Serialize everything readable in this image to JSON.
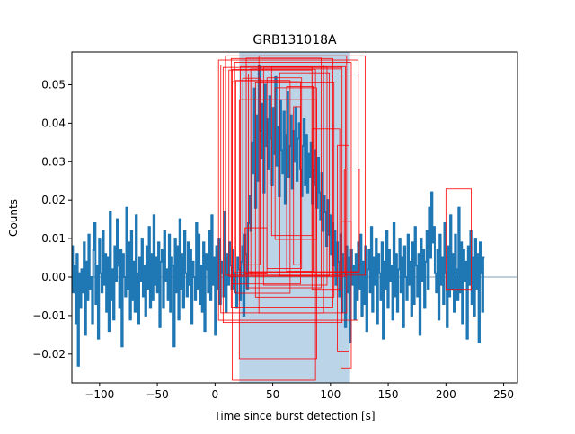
{
  "chart_data": {
    "type": "line",
    "title": "GRB131018A",
    "xlabel": "Time since burst detection [s]",
    "ylabel": "Counts",
    "xlim": [
      -124,
      262
    ],
    "ylim": [
      -0.0275,
      0.0585
    ],
    "grid": false,
    "xticks": [
      -100,
      -50,
      0,
      50,
      100,
      150,
      200,
      250
    ],
    "xtick_labels": [
      "−100",
      "−50",
      "0",
      "50",
      "100",
      "150",
      "200",
      "250"
    ],
    "yticks": [
      -0.02,
      -0.01,
      0.0,
      0.01,
      0.02,
      0.03,
      0.04,
      0.05
    ],
    "ytick_labels": [
      "−0.02",
      "−0.01",
      "0.00",
      "0.01",
      "0.02",
      "0.03",
      "0.04",
      "0.05"
    ],
    "shaded_interval": {
      "x": [
        21,
        117
      ],
      "color": "#bcd4e8"
    },
    "baseline": {
      "y": 0.0,
      "color": "#7f9fb5"
    },
    "series": [
      {
        "color": "#1f77b4",
        "x_start": -124,
        "x_step": 1.024,
        "values": [
          0.008,
          -0.004,
          0.003,
          -0.012,
          0.006,
          -0.023,
          0.001,
          -0.008,
          0.002,
          -0.004,
          0.009,
          -0.015,
          0.004,
          -0.006,
          0.011,
          -0.003,
          0.0,
          -0.012,
          0.007,
          0.014,
          -0.007,
          0.003,
          -0.016,
          0.01,
          0.001,
          -0.004,
          0.012,
          -0.002,
          0.006,
          -0.009,
          0.005,
          -0.014,
          0.017,
          -0.006,
          0.002,
          -0.011,
          0.008,
          -0.001,
          0.015,
          0.003,
          -0.008,
          0.007,
          -0.018,
          0.006,
          0.0,
          -0.005,
          0.018,
          -0.003,
          0.009,
          -0.011,
          0.012,
          -0.006,
          0.004,
          -0.009,
          0.016,
          0.001,
          -0.012,
          0.005,
          -0.001,
          0.01,
          -0.005,
          0.003,
          -0.01,
          0.008,
          -0.003,
          0.013,
          -0.008,
          0.006,
          -0.006,
          0.016,
          -0.002,
          0.005,
          -0.004,
          0.009,
          -0.013,
          0.004,
          0.007,
          -0.008,
          0.012,
          -0.001,
          0.002,
          -0.006,
          0.011,
          -0.009,
          0.005,
          0.003,
          -0.018,
          0.01,
          -0.004,
          0.008,
          -0.011,
          0.015,
          -0.003,
          0.006,
          -0.008,
          0.012,
          0.001,
          -0.005,
          0.009,
          -0.002,
          0.007,
          -0.012,
          0.004,
          0.0,
          -0.006,
          0.014,
          -0.003,
          0.011,
          -0.007,
          0.003,
          -0.009,
          0.009,
          -0.014,
          0.006,
          0.002,
          -0.004,
          0.012,
          -0.006,
          0.016,
          -0.002,
          0.005,
          -0.015,
          0.008,
          -0.003,
          0.01,
          -0.007,
          0.004,
          0.001,
          -0.005,
          0.017,
          -0.009,
          0.006,
          -0.002,
          0.009,
          0.003,
          -0.003,
          0.007,
          0.001,
          -0.004,
          -0.008,
          0.005,
          0.002,
          -0.006,
          0.004,
          0.008,
          -0.01,
          0.011,
          0.006,
          -0.003,
          0.014,
          0.021,
          0.012,
          0.035,
          0.027,
          0.049,
          0.018,
          0.042,
          0.025,
          0.055,
          0.038,
          0.031,
          0.045,
          0.022,
          0.05,
          0.034,
          0.041,
          0.028,
          0.047,
          0.036,
          0.024,
          0.044,
          0.032,
          0.052,
          0.029,
          0.039,
          0.021,
          0.046,
          0.033,
          0.027,
          0.043,
          0.019,
          0.037,
          0.048,
          0.026,
          0.034,
          0.042,
          0.023,
          0.038,
          0.03,
          0.044,
          0.025,
          0.036,
          0.04,
          0.028,
          0.021,
          0.034,
          0.041,
          0.024,
          0.037,
          0.022,
          0.032,
          0.026,
          0.035,
          0.019,
          0.028,
          0.033,
          0.024,
          0.018,
          0.031,
          0.022,
          0.015,
          0.027,
          0.012,
          0.021,
          0.017,
          0.008,
          0.02,
          0.011,
          0.016,
          0.006,
          0.014,
          0.003,
          0.012,
          -0.002,
          0.009,
          0.004,
          -0.005,
          0.011,
          -0.009,
          0.006,
          0.001,
          -0.013,
          0.008,
          -0.004,
          0.005,
          -0.017,
          0.007,
          -0.002,
          0.003,
          -0.011,
          0.006,
          -0.006,
          0.009,
          -0.003,
          0.011,
          -0.01,
          0.004,
          -0.007,
          0.008,
          -0.014,
          0.002,
          0.007,
          -0.004,
          0.013,
          -0.009,
          0.005,
          -0.002,
          0.01,
          -0.012,
          0.006,
          0.001,
          -0.006,
          0.009,
          -0.016,
          0.004,
          -0.003,
          0.012,
          -0.008,
          0.007,
          -0.001,
          0.003,
          -0.011,
          0.014,
          -0.005,
          0.006,
          -0.009,
          0.002,
          0.01,
          -0.004,
          0.005,
          -0.013,
          0.008,
          0.0,
          -0.006,
          0.011,
          -0.002,
          0.004,
          -0.01,
          0.009,
          -0.007,
          0.013,
          0.003,
          -0.005,
          0.006,
          -0.015,
          0.01,
          -0.001,
          0.007,
          -0.008,
          0.004,
          0.012,
          -0.003,
          0.018,
          0.005,
          0.022,
          0.009,
          0.013,
          0.001,
          -0.004,
          0.007,
          -0.011,
          0.011,
          -0.002,
          0.005,
          -0.007,
          0.014,
          0.001,
          -0.013,
          0.008,
          -0.005,
          0.016,
          -0.003,
          0.006,
          -0.009,
          0.011,
          0.002,
          -0.006,
          0.018,
          -0.004,
          0.009,
          -0.012,
          0.007,
          -0.001,
          0.004,
          -0.016,
          0.008,
          -0.002,
          0.012,
          -0.007,
          0.005,
          -0.01,
          0.01,
          -0.003,
          0.006,
          -0.017,
          0.009,
          0.001,
          -0.009,
          0.005
        ]
      }
    ],
    "boxes": {
      "color": "#ff0000",
      "rects": [
        {
          "x0": 3,
          "x1": 124,
          "y0": -0.0112,
          "y1": 0.0564
        },
        {
          "x0": 5,
          "x1": 94,
          "y0": -0.0093,
          "y1": 0.0551
        },
        {
          "x0": 7,
          "x1": 110,
          "y0": -0.0118,
          "y1": 0.0545
        },
        {
          "x0": 9,
          "x1": 130,
          "y0": 0.0005,
          "y1": 0.0575
        },
        {
          "x0": 12,
          "x1": 84,
          "y0": 0.0002,
          "y1": 0.0538
        },
        {
          "x0": 14,
          "x1": 102,
          "y0": -0.0078,
          "y1": 0.0568
        },
        {
          "x0": 15,
          "x1": 74,
          "y0": -0.0018,
          "y1": 0.0508
        },
        {
          "x0": 17,
          "x1": 118,
          "y0": 0.0012,
          "y1": 0.0558
        },
        {
          "x0": 15,
          "x1": 87,
          "y0": -0.0268,
          "y1": 0.054
        },
        {
          "x0": 18,
          "x1": 65,
          "y0": -0.0042,
          "y1": 0.0511
        },
        {
          "x0": 21,
          "x1": 88,
          "y0": -0.0212,
          "y1": 0.0461
        },
        {
          "x0": 22,
          "x1": 113,
          "y0": 0.0002,
          "y1": 0.0547
        },
        {
          "x0": 24,
          "x1": 39,
          "y0": 0.0032,
          "y1": 0.0517
        },
        {
          "x0": 26,
          "x1": 45,
          "y0": 0.0008,
          "y1": 0.0128
        },
        {
          "x0": 27,
          "x1": 92,
          "y0": -0.0028,
          "y1": 0.0569
        },
        {
          "x0": 29,
          "x1": 124,
          "y0": 0.0014,
          "y1": 0.0528
        },
        {
          "x0": 31,
          "x1": 109,
          "y0": 0.0005,
          "y1": 0.0541
        },
        {
          "x0": 35,
          "x1": 103,
          "y0": -0.0052,
          "y1": 0.0505
        },
        {
          "x0": 38,
          "x1": 114,
          "y0": -0.0093,
          "y1": 0.0575
        },
        {
          "x0": 42,
          "x1": 97,
          "y0": -0.0021,
          "y1": 0.0545
        },
        {
          "x0": 45,
          "x1": 75,
          "y0": 0.0022,
          "y1": 0.0518
        },
        {
          "x0": 49,
          "x1": 84,
          "y0": 0.0108,
          "y1": 0.0545
        },
        {
          "x0": 52,
          "x1": 88,
          "y0": 0.0098,
          "y1": 0.0492
        },
        {
          "x0": 56,
          "x1": 99,
          "y0": 0.0003,
          "y1": 0.0531
        },
        {
          "x0": 62,
          "x1": 85,
          "y0": 0.0015,
          "y1": 0.0495
        },
        {
          "x0": 68,
          "x1": 74,
          "y0": 0.0032,
          "y1": 0.0443
        },
        {
          "x0": 84,
          "x1": 108,
          "y0": -0.0032,
          "y1": 0.0385
        },
        {
          "x0": 106,
          "x1": 116,
          "y0": -0.0192,
          "y1": 0.0342
        },
        {
          "x0": 109,
          "x1": 118,
          "y0": -0.0236,
          "y1": 0.0145
        },
        {
          "x0": 112,
          "x1": 125,
          "y0": 0.0012,
          "y1": 0.0281
        },
        {
          "x0": 200,
          "x1": 222,
          "y0": -0.0032,
          "y1": 0.0229
        }
      ]
    }
  }
}
